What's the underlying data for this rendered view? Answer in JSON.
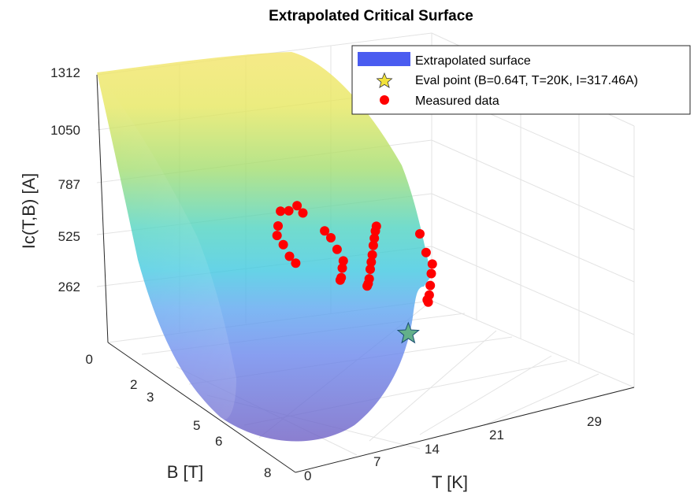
{
  "chart_data": {
    "type": "surface3d",
    "title": "Extrapolated Critical Surface",
    "xlabel": "T [K]",
    "ylabel": "B [T]",
    "zlabel": "Ic(T,B) [A]",
    "x_ticks": [
      "0",
      "7",
      "14",
      "21",
      "29"
    ],
    "y_ticks": [
      "2",
      "3",
      "5",
      "6",
      "8"
    ],
    "z_ticks": [
      "0",
      "262",
      "525",
      "787",
      "1050",
      "1312"
    ],
    "grid": true,
    "legend_position": "top-right",
    "legend": [
      {
        "label": "Extrapolated surface",
        "marker": "patch",
        "color": "#4a5cf0"
      },
      {
        "label": "Eval point (B=0.64T, T=20K, I=317.46A)",
        "marker": "star",
        "color": "#f2e23a"
      },
      {
        "label": "Measured data",
        "marker": "circle",
        "color": "#ff0000"
      }
    ],
    "eval_point": {
      "B": 0.64,
      "T": 20,
      "I": 317.46
    },
    "measured_data": [
      {
        "T": 4.2,
        "B": 3.0,
        "I": 1050
      },
      {
        "T": 4.2,
        "B": 3.5,
        "I": 1000
      },
      {
        "T": 4.2,
        "B": 4.0,
        "I": 970
      },
      {
        "T": 5.0,
        "B": 3.0,
        "I": 1010
      },
      {
        "T": 5.0,
        "B": 4.5,
        "I": 870
      },
      {
        "T": 6.0,
        "B": 5.0,
        "I": 790
      },
      {
        "T": 8.0,
        "B": 5.5,
        "I": 700
      },
      {
        "T": 10.0,
        "B": 6.0,
        "I": 600
      },
      {
        "T": 12.0,
        "B": 6.5,
        "I": 520
      },
      {
        "T": 8.0,
        "B": 3.0,
        "I": 900
      },
      {
        "T": 10.0,
        "B": 3.5,
        "I": 820
      },
      {
        "T": 12.0,
        "B": 4.0,
        "I": 720
      },
      {
        "T": 14.0,
        "B": 4.5,
        "I": 620
      },
      {
        "T": 15.0,
        "B": 5.0,
        "I": 550
      },
      {
        "T": 16.0,
        "B": 5.5,
        "I": 470
      },
      {
        "T": 17.0,
        "B": 6.0,
        "I": 420
      },
      {
        "T": 14.0,
        "B": 2.5,
        "I": 880
      },
      {
        "T": 15.0,
        "B": 3.0,
        "I": 820
      },
      {
        "T": 16.0,
        "B": 3.5,
        "I": 750
      },
      {
        "T": 17.0,
        "B": 4.0,
        "I": 680
      },
      {
        "T": 18.0,
        "B": 4.5,
        "I": 600
      },
      {
        "T": 19.0,
        "B": 5.0,
        "I": 530
      },
      {
        "T": 20.0,
        "B": 5.5,
        "I": 460
      },
      {
        "T": 21.0,
        "B": 6.0,
        "I": 380
      },
      {
        "T": 22.0,
        "B": 6.5,
        "I": 320
      },
      {
        "T": 23.0,
        "B": 7.0,
        "I": 270
      },
      {
        "T": 20.0,
        "B": 2.5,
        "I": 780
      },
      {
        "T": 22.0,
        "B": 3.0,
        "I": 650
      },
      {
        "T": 24.0,
        "B": 3.5,
        "I": 550
      },
      {
        "T": 25.0,
        "B": 4.0,
        "I": 470
      },
      {
        "T": 26.0,
        "B": 4.5,
        "I": 380
      },
      {
        "T": 27.0,
        "B": 5.0,
        "I": 300
      },
      {
        "T": 28.0,
        "B": 5.5,
        "I": 230
      },
      {
        "T": 29.0,
        "B": 6.0,
        "I": 200
      }
    ]
  }
}
